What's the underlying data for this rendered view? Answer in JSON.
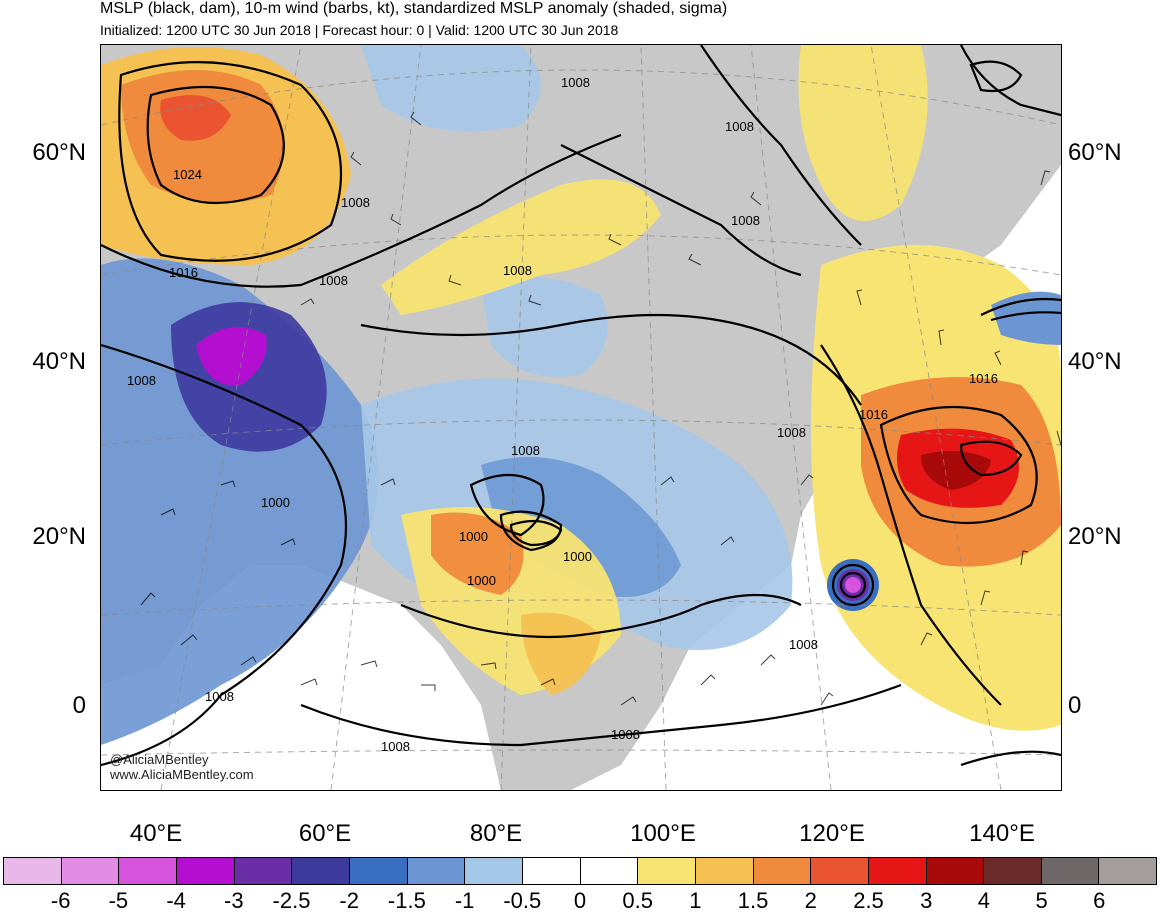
{
  "header": {
    "title": "MSLP (black, dam), 10-m wind (barbs, kt), standardized MSLP anomaly (shaded, sigma)",
    "subtitle": "Initialized: 1200 UTC 30 Jun 2018 | Forecast hour: 0 | Valid: 1200 UTC 30 Jun 2018"
  },
  "axes": {
    "lat_labels": [
      "60°N",
      "40°N",
      "20°N",
      "0"
    ],
    "lon_labels": [
      "40°E",
      "60°E",
      "80°E",
      "100°E",
      "120°E",
      "140°E"
    ]
  },
  "contour_labels": [
    "1024",
    "1016",
    "1008",
    "1008",
    "1008",
    "1008",
    "1008",
    "1008",
    "1008",
    "1000",
    "1000",
    "1000",
    "1000",
    "1008",
    "1016",
    "1016",
    "1008",
    "1008",
    "1008",
    "1008",
    "1008"
  ],
  "credit": {
    "handle": "@AliciaMBentley",
    "site": "www.AliciaMBentley.com"
  },
  "colorbar": {
    "colors": [
      "#e8b8e8",
      "#e28ce6",
      "#d653dd",
      "#b40fd0",
      "#6a2ea6",
      "#3d3a9e",
      "#3a6ec0",
      "#6b96d3",
      "#a6c8e8",
      "#ffffff",
      "#ffffff",
      "#f8e473",
      "#f4c152",
      "#f08a3c",
      "#ea5430",
      "#e61616",
      "#a80a0a",
      "#6b2a2a",
      "#6e6868",
      "#a59c9c"
    ],
    "tick_labels": [
      "-6",
      "-5",
      "-4",
      "-3",
      "-2.5",
      "-2",
      "-1.5",
      "-1",
      "-0.5",
      "0",
      "0.5",
      "1",
      "1.5",
      "2",
      "2.5",
      "3",
      "4",
      "5",
      "6"
    ]
  },
  "map": {
    "land_color": "#c8c8c8",
    "ocean_color": "#ffffff"
  }
}
